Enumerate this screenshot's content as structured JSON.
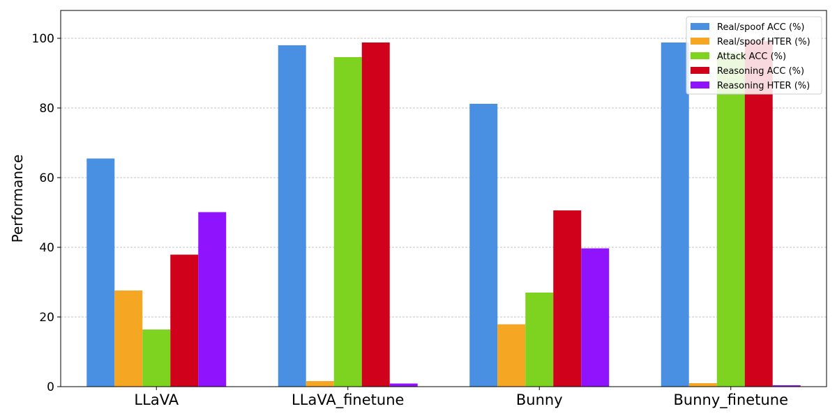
{
  "chart_data": {
    "type": "bar",
    "title": "",
    "xlabel": "",
    "ylabel": "Performance",
    "ylim": [
      0,
      108
    ],
    "yticks": [
      0,
      20,
      40,
      60,
      80,
      100
    ],
    "grid": "y-dashed",
    "legend_position": "top-right",
    "categories": [
      "LLaVA",
      "LLaVA_finetune",
      "Bunny",
      "Bunny_finetune"
    ],
    "series": [
      {
        "name": "Real/spoof ACC (%)",
        "color": "#4a90e2",
        "values": [
          65.5,
          98.0,
          81.2,
          98.8
        ]
      },
      {
        "name": "Real/spoof HTER (%)",
        "color": "#f5a623",
        "values": [
          27.6,
          1.6,
          17.9,
          1.0
        ]
      },
      {
        "name": "Attack ACC (%)",
        "color": "#7ed321",
        "values": [
          16.4,
          94.6,
          27.0,
          96.0
        ]
      },
      {
        "name": "Reasoning ACC (%)",
        "color": "#d0021b",
        "values": [
          37.9,
          98.8,
          50.6,
          99.2
        ]
      },
      {
        "name": "Reasoning HTER (%)",
        "color": "#9013fe",
        "values": [
          50.1,
          0.9,
          39.7,
          0.4
        ]
      }
    ]
  }
}
